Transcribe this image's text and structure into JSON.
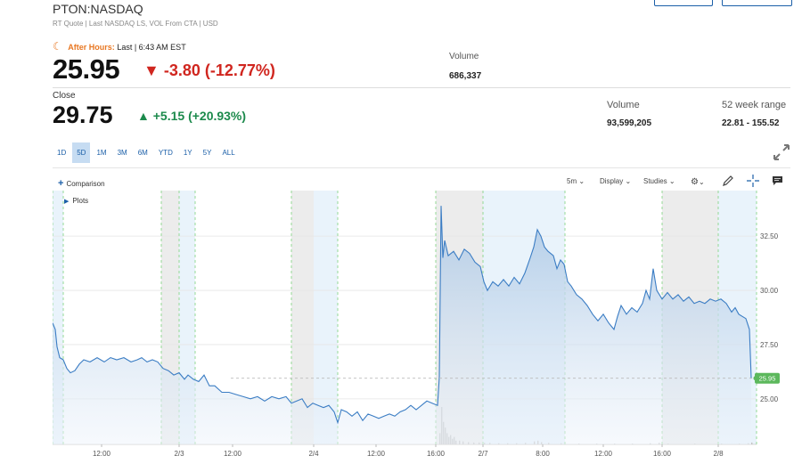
{
  "header": {
    "symbol": "PTON:NASDAQ",
    "subline": "RT Quote | Last NASDAQ LS, VOL From CTA | USD"
  },
  "after_hours": {
    "label": "After Hours:",
    "last_label": "Last | 6:43 AM EST",
    "price": "25.95",
    "change": "-3.80 (-12.77%)",
    "volume_label": "Volume",
    "volume": "686,337"
  },
  "close": {
    "label": "Close",
    "price": "29.75",
    "change": "+5.15 (+20.93%)",
    "volume_label": "Volume",
    "volume": "93,599,205",
    "range_label": "52 week range",
    "range": "22.81 - 155.52"
  },
  "range_tabs": [
    {
      "label": "1D",
      "active": false
    },
    {
      "label": "5D",
      "active": true
    },
    {
      "label": "1M",
      "active": false
    },
    {
      "label": "3M",
      "active": false
    },
    {
      "label": "6M",
      "active": false
    },
    {
      "label": "YTD",
      "active": false
    },
    {
      "label": "1Y",
      "active": false
    },
    {
      "label": "5Y",
      "active": false
    },
    {
      "label": "ALL",
      "active": false
    }
  ],
  "toolbar": {
    "comparison": "Comparison",
    "interval": "5m",
    "display": "Display",
    "studies": "Studies"
  },
  "chart": {
    "plots_label": "Plots",
    "colors": {
      "line": "#3b7dc4",
      "fill_top": "#a9c6e4",
      "fill_bottom": "#eef4fb",
      "last_badge": "#5cb85c"
    }
  },
  "chart_data": {
    "type": "area",
    "y_ticks": [
      25.0,
      27.5,
      30.0,
      32.5
    ],
    "y_tick_labels": [
      "25.00",
      "27.50",
      "30.00",
      "32.50"
    ],
    "ylim": [
      22.9,
      34.6
    ],
    "x_tick_labels": [
      "12:00",
      "2/3",
      "12:00",
      "2/4",
      "12:00",
      "16:00",
      "2/7",
      "8:00",
      "12:00",
      "16:00",
      "2/8"
    ],
    "last_value": 25.95,
    "last_label": "25.95",
    "price_points": [
      [
        0,
        28.5
      ],
      [
        3,
        28.2
      ],
      [
        5,
        27.4
      ],
      [
        8,
        26.9
      ],
      [
        12,
        26.8
      ],
      [
        16,
        26.4
      ],
      [
        20,
        26.2
      ],
      [
        25,
        26.3
      ],
      [
        30,
        26.6
      ],
      [
        35,
        26.8
      ],
      [
        42,
        26.7
      ],
      [
        50,
        26.9
      ],
      [
        58,
        26.7
      ],
      [
        65,
        26.9
      ],
      [
        72,
        26.8
      ],
      [
        80,
        26.9
      ],
      [
        88,
        26.7
      ],
      [
        95,
        26.8
      ],
      [
        100,
        26.9
      ],
      [
        106,
        26.7
      ],
      [
        112,
        26.8
      ],
      [
        118,
        26.7
      ],
      [
        124,
        26.4
      ],
      [
        130,
        26.3
      ],
      [
        136,
        26.1
      ],
      [
        142,
        26.2
      ],
      [
        148,
        25.9
      ],
      [
        152,
        26.1
      ],
      [
        158,
        25.9
      ],
      [
        164,
        25.8
      ],
      [
        170,
        26.1
      ],
      [
        176,
        25.6
      ],
      [
        182,
        25.6
      ],
      [
        190,
        25.3
      ],
      [
        198,
        25.3
      ],
      [
        206,
        25.2
      ],
      [
        214,
        25.1
      ],
      [
        222,
        25.0
      ],
      [
        230,
        25.1
      ],
      [
        238,
        24.9
      ],
      [
        246,
        25.1
      ],
      [
        254,
        25.0
      ],
      [
        262,
        25.1
      ],
      [
        268,
        24.8
      ],
      [
        274,
        24.9
      ],
      [
        280,
        25.0
      ],
      [
        286,
        24.6
      ],
      [
        292,
        24.8
      ],
      [
        298,
        24.7
      ],
      [
        304,
        24.6
      ],
      [
        310,
        24.7
      ],
      [
        316,
        24.4
      ],
      [
        320,
        23.9
      ],
      [
        324,
        24.5
      ],
      [
        330,
        24.4
      ],
      [
        336,
        24.2
      ],
      [
        342,
        24.4
      ],
      [
        348,
        24.0
      ],
      [
        354,
        24.3
      ],
      [
        360,
        24.2
      ],
      [
        366,
        24.1
      ],
      [
        372,
        24.2
      ],
      [
        378,
        24.3
      ],
      [
        384,
        24.2
      ],
      [
        390,
        24.4
      ],
      [
        396,
        24.5
      ],
      [
        402,
        24.7
      ],
      [
        408,
        24.5
      ],
      [
        414,
        24.7
      ],
      [
        420,
        24.9
      ],
      [
        426,
        24.8
      ],
      [
        432,
        24.7
      ],
      [
        434,
        26.0
      ],
      [
        436,
        33.9
      ],
      [
        438,
        31.5
      ],
      [
        440,
        32.3
      ],
      [
        444,
        31.6
      ],
      [
        450,
        31.8
      ],
      [
        456,
        31.4
      ],
      [
        462,
        31.9
      ],
      [
        468,
        31.7
      ],
      [
        474,
        31.3
      ],
      [
        480,
        31.1
      ],
      [
        484,
        30.4
      ],
      [
        488,
        30.0
      ],
      [
        494,
        30.4
      ],
      [
        500,
        30.2
      ],
      [
        506,
        30.5
      ],
      [
        512,
        30.2
      ],
      [
        518,
        30.6
      ],
      [
        524,
        30.3
      ],
      [
        530,
        30.8
      ],
      [
        536,
        31.5
      ],
      [
        540,
        32.0
      ],
      [
        544,
        32.8
      ],
      [
        548,
        32.5
      ],
      [
        552,
        32.0
      ],
      [
        556,
        31.8
      ],
      [
        562,
        31.6
      ],
      [
        566,
        31.0
      ],
      [
        570,
        31.4
      ],
      [
        574,
        31.2
      ],
      [
        578,
        30.4
      ],
      [
        582,
        30.2
      ],
      [
        588,
        29.8
      ],
      [
        594,
        29.6
      ],
      [
        600,
        29.3
      ],
      [
        606,
        28.9
      ],
      [
        612,
        28.6
      ],
      [
        618,
        28.9
      ],
      [
        624,
        28.5
      ],
      [
        630,
        28.2
      ],
      [
        634,
        28.8
      ],
      [
        638,
        29.3
      ],
      [
        644,
        28.9
      ],
      [
        650,
        29.2
      ],
      [
        656,
        29.0
      ],
      [
        662,
        29.4
      ],
      [
        666,
        30.0
      ],
      [
        670,
        29.6
      ],
      [
        674,
        31.0
      ],
      [
        678,
        30.0
      ],
      [
        684,
        29.6
      ],
      [
        690,
        29.9
      ],
      [
        696,
        29.6
      ],
      [
        702,
        29.8
      ],
      [
        708,
        29.5
      ],
      [
        714,
        29.7
      ],
      [
        720,
        29.4
      ],
      [
        726,
        29.5
      ],
      [
        732,
        29.4
      ],
      [
        738,
        29.6
      ],
      [
        744,
        29.5
      ],
      [
        750,
        29.6
      ],
      [
        756,
        29.4
      ],
      [
        762,
        29.0
      ],
      [
        766,
        29.2
      ],
      [
        770,
        28.9
      ],
      [
        774,
        28.8
      ],
      [
        778,
        28.7
      ],
      [
        782,
        28.2
      ],
      [
        784,
        25.95
      ]
    ],
    "volume_points": [
      [
        434,
        0.3
      ],
      [
        436,
        1.0
      ],
      [
        438,
        0.6
      ],
      [
        440,
        0.45
      ],
      [
        442,
        0.3
      ],
      [
        444,
        0.2
      ],
      [
        446,
        0.25
      ],
      [
        448,
        0.15
      ],
      [
        450,
        0.2
      ],
      [
        452,
        0.1
      ],
      [
        456,
        0.1
      ],
      [
        460,
        0.08
      ],
      [
        466,
        0.06
      ],
      [
        472,
        0.05
      ],
      [
        478,
        0.05
      ],
      [
        484,
        0.04
      ],
      [
        490,
        0.04
      ],
      [
        500,
        0.03
      ],
      [
        510,
        0.03
      ],
      [
        520,
        0.03
      ],
      [
        530,
        0.04
      ],
      [
        540,
        0.08
      ],
      [
        544,
        0.1
      ],
      [
        548,
        0.06
      ],
      [
        556,
        0.04
      ],
      [
        570,
        0.03
      ],
      [
        590,
        0.02
      ],
      [
        610,
        0.02
      ],
      [
        630,
        0.02
      ],
      [
        650,
        0.02
      ],
      [
        670,
        0.03
      ],
      [
        680,
        0.04
      ],
      [
        690,
        0.02
      ],
      [
        720,
        0.02
      ],
      [
        750,
        0.02
      ],
      [
        770,
        0.02
      ],
      [
        780,
        0.03
      ],
      [
        784,
        0.05
      ]
    ]
  }
}
